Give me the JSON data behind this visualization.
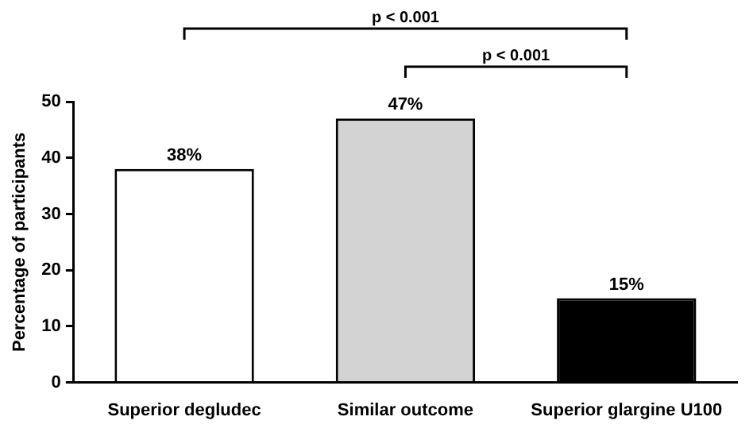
{
  "chart_data": {
    "type": "bar",
    "ylabel": "Percentage of participants",
    "categories": [
      "Superior degludec",
      "Similar outcome",
      "Superior glargine U100"
    ],
    "values": [
      38,
      47,
      15
    ],
    "colors": [
      "#ffffff",
      "#d3d3d3",
      "#000000"
    ],
    "value_labels": [
      "38%",
      "47%",
      "15%"
    ],
    "ylim": [
      0,
      50
    ],
    "yticks": [
      0,
      10,
      20,
      30,
      40,
      50
    ],
    "grid": false,
    "legend": false,
    "annotations": [
      "p < 0.001",
      "p < 0.001"
    ]
  }
}
